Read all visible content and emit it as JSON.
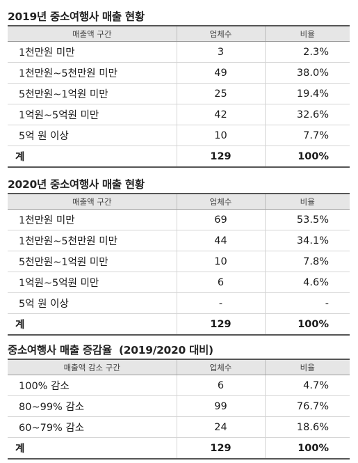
{
  "sections": [
    {
      "title": "2019년 중소여행사 매출 현황",
      "headers": [
        "매출액 구간",
        "업체수",
        "비율"
      ],
      "rows": [
        {
          "label": "1천만원 미만",
          "count": "3",
          "ratio": "2.3%"
        },
        {
          "label": "1천만원~5천만원 미만",
          "count": "49",
          "ratio": "38.0%"
        },
        {
          "label": "5천만원~1억원 미만",
          "count": "25",
          "ratio": "19.4%"
        },
        {
          "label": "1억원~5억원 미만",
          "count": "42",
          "ratio": "32.6%"
        },
        {
          "label": "5억 원 이상",
          "count": "10",
          "ratio": "7.7%"
        }
      ],
      "total": {
        "label": "계",
        "count": "129",
        "ratio": "100%"
      }
    },
    {
      "title": "2020년 중소여행사 매출 현황",
      "headers": [
        "매출액 구간",
        "업체수",
        "비율"
      ],
      "rows": [
        {
          "label": "1천만원 미만",
          "count": "69",
          "ratio": "53.5%"
        },
        {
          "label": "1천만원~5천만원 미만",
          "count": "44",
          "ratio": "34.1%"
        },
        {
          "label": "5천만원~1억원 미만",
          "count": "10",
          "ratio": "7.8%"
        },
        {
          "label": "1억원~5억원 미만",
          "count": "6",
          "ratio": "4.6%"
        },
        {
          "label": "5억 원 이상",
          "count": "-",
          "ratio": "-"
        }
      ],
      "total": {
        "label": "계",
        "count": "129",
        "ratio": "100%"
      }
    },
    {
      "title": "중소여행사 매출 증감율  (2019/2020 대비)",
      "headers": [
        "매출액 감소 구간",
        "업체수",
        "비율"
      ],
      "rows": [
        {
          "label": "100% 감소",
          "count": "6",
          "ratio": "4.7%"
        },
        {
          "label": "80~99% 감소",
          "count": "99",
          "ratio": "76.7%"
        },
        {
          "label": "60~79% 감소",
          "count": "24",
          "ratio": "18.6%"
        }
      ],
      "total": {
        "label": "계",
        "count": "129",
        "ratio": "100%"
      }
    }
  ]
}
